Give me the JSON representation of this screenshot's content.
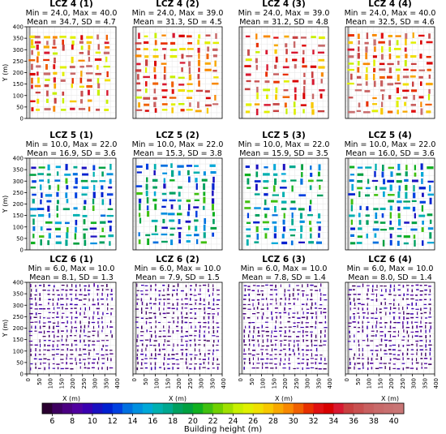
{
  "chart_data": [
    {
      "type": "heatmap",
      "title": "LCZ 4 (1)",
      "stats": [
        "Min = 24.0, Max = 40.0",
        "Mean = 34.7, SD = 4.7"
      ],
      "cols": [
        25,
        50,
        90,
        125,
        165,
        205,
        245,
        280,
        320,
        360
      ],
      "rows": [
        355,
        330,
        310,
        285,
        255,
        225,
        195,
        165,
        140,
        110,
        75,
        40
      ],
      "min": 24,
      "max": 40,
      "mean": 34.7,
      "sd": 4.7,
      "ylabel": "Y (m)",
      "xlabel": ""
    },
    {
      "type": "heatmap",
      "title": "LCZ 4 (2)",
      "stats": [
        "Min = 24.0, Max = 39.0",
        "Mean = 31.3, SD = 4.5"
      ],
      "cols": [
        25,
        60,
        100,
        140,
        180,
        220,
        255,
        295,
        335,
        370
      ],
      "rows": [
        360,
        330,
        300,
        270,
        240,
        210,
        180,
        150,
        120,
        90,
        60,
        35
      ],
      "min": 24,
      "max": 39,
      "mean": 31.3,
      "sd": 4.5,
      "ylabel": "",
      "xlabel": ""
    },
    {
      "type": "heatmap",
      "title": "LCZ 4 (3)",
      "stats": [
        "Min = 24.0, Max = 39.0",
        "Mean = 31.2, SD = 4.8"
      ],
      "cols": [
        40,
        80,
        125,
        165,
        210,
        250,
        290,
        330,
        370
      ],
      "rows": [
        355,
        320,
        290,
        255,
        225,
        190,
        160,
        125,
        95,
        60,
        30
      ],
      "min": 24,
      "max": 39,
      "mean": 31.2,
      "sd": 4.8,
      "ylabel": "",
      "xlabel": ""
    },
    {
      "type": "heatmap",
      "title": "LCZ 4 (4)",
      "stats": [
        "Min = 24.0, Max = 40.0",
        "Mean = 32.5, SD = 4.6"
      ],
      "cols": [
        25,
        60,
        95,
        130,
        165,
        200,
        235,
        270,
        305,
        340,
        375
      ],
      "rows": [
        360,
        330,
        300,
        270,
        240,
        210,
        180,
        150,
        120,
        90,
        60,
        30
      ],
      "min": 24,
      "max": 40,
      "mean": 32.5,
      "sd": 4.6,
      "ylabel": "",
      "xlabel": ""
    },
    {
      "type": "heatmap",
      "title": "LCZ 5 (1)",
      "stats": [
        "Min = 10.0, Max = 22.0",
        "Mean = 16.9, SD = 3.6"
      ],
      "cols": [
        30,
        65,
        100,
        140,
        180,
        220,
        260,
        300,
        340,
        375
      ],
      "rows": [
        360,
        330,
        300,
        270,
        240,
        210,
        180,
        150,
        120,
        90,
        60,
        30
      ],
      "min": 10,
      "max": 22,
      "mean": 16.9,
      "sd": 3.6,
      "ylabel": "Y (m)",
      "xlabel": ""
    },
    {
      "type": "heatmap",
      "title": "LCZ 5 (2)",
      "stats": [
        "Min = 10.0, Max = 22.0",
        "Mean = 15.3, SD = 3.8"
      ],
      "cols": [
        30,
        65,
        100,
        140,
        175,
        210,
        250,
        285,
        320,
        360
      ],
      "rows": [
        365,
        335,
        305,
        275,
        245,
        215,
        185,
        155,
        125,
        95,
        65,
        35
      ],
      "min": 10,
      "max": 22,
      "mean": 15.3,
      "sd": 3.8,
      "ylabel": "",
      "xlabel": ""
    },
    {
      "type": "heatmap",
      "title": "LCZ 5 (3)",
      "stats": [
        "Min = 10.0, Max = 22.0",
        "Mean = 15.9, SD = 3.5"
      ],
      "cols": [
        40,
        80,
        120,
        160,
        200,
        240,
        280,
        320,
        360
      ],
      "rows": [
        360,
        330,
        300,
        270,
        240,
        210,
        180,
        150,
        120,
        90,
        60,
        30
      ],
      "min": 10,
      "max": 22,
      "mean": 15.9,
      "sd": 3.5,
      "ylabel": "",
      "xlabel": ""
    },
    {
      "type": "heatmap",
      "title": "LCZ 5 (4)",
      "stats": [
        "Min = 10.0, Max = 22.0",
        "Mean = 16.0, SD = 3.6"
      ],
      "cols": [
        30,
        65,
        100,
        135,
        170,
        205,
        240,
        275,
        310,
        345,
        380
      ],
      "rows": [
        360,
        330,
        300,
        270,
        240,
        210,
        180,
        150,
        120,
        90,
        60,
        30
      ],
      "min": 10,
      "max": 22,
      "mean": 16.0,
      "sd": 3.6,
      "ylabel": "",
      "xlabel": ""
    },
    {
      "type": "heatmap",
      "title": "LCZ 6 (1)",
      "stats": [
        "Min = 6.0, Max = 10.0",
        "Mean = 8.1, SD = 1.3"
      ],
      "cols": [
        20,
        40,
        60,
        80,
        100,
        120,
        140,
        160,
        180,
        200,
        220,
        240,
        260,
        280,
        300,
        320,
        340,
        360,
        380
      ],
      "rows": [
        385,
        365,
        345,
        325,
        305,
        285,
        265,
        245,
        225,
        205,
        185,
        165,
        145,
        125,
        105,
        85,
        65,
        45,
        25
      ],
      "min": 6,
      "max": 10,
      "mean": 8.1,
      "sd": 1.3,
      "ylabel": "Y (m)",
      "xlabel": "X (m)"
    },
    {
      "type": "heatmap",
      "title": "LCZ 6 (2)",
      "stats": [
        "Min = 6.0, Max = 10.0",
        "Mean = 7.9, SD = 1.5"
      ],
      "cols": [
        20,
        40,
        60,
        80,
        100,
        120,
        140,
        160,
        180,
        200,
        220,
        240,
        260,
        280,
        300,
        320,
        340,
        360,
        380
      ],
      "rows": [
        385,
        365,
        345,
        325,
        305,
        285,
        265,
        245,
        225,
        205,
        185,
        165,
        145,
        125,
        105,
        85,
        65,
        45,
        25
      ],
      "min": 6,
      "max": 10,
      "mean": 7.9,
      "sd": 1.5,
      "ylabel": "",
      "xlabel": "X (m)"
    },
    {
      "type": "heatmap",
      "title": "LCZ 6 (3)",
      "stats": [
        "Min = 6.0, Max = 10.0",
        "Mean = 7.8, SD = 1.4"
      ],
      "cols": [
        25,
        45,
        65,
        85,
        105,
        125,
        145,
        165,
        185,
        205,
        225,
        245,
        265,
        285,
        305,
        325,
        345,
        365,
        385
      ],
      "rows": [
        385,
        365,
        345,
        325,
        305,
        285,
        265,
        245,
        225,
        205,
        185,
        165,
        145,
        125,
        105,
        85,
        65,
        45,
        25
      ],
      "min": 6,
      "max": 10,
      "mean": 7.8,
      "sd": 1.4,
      "ylabel": "",
      "xlabel": "X (m)"
    },
    {
      "type": "heatmap",
      "title": "LCZ 6 (4)",
      "stats": [
        "Min = 6.0, Max = 10.0",
        "Mean = 8.0, SD = 1.4"
      ],
      "cols": [
        20,
        40,
        60,
        80,
        100,
        120,
        140,
        160,
        180,
        200,
        220,
        240,
        260,
        280,
        300,
        320,
        340,
        360,
        380
      ],
      "rows": [
        385,
        365,
        345,
        325,
        305,
        285,
        265,
        245,
        225,
        205,
        185,
        165,
        145,
        125,
        105,
        85,
        65,
        45,
        25
      ],
      "min": 6,
      "max": 10,
      "mean": 8.0,
      "sd": 1.4,
      "ylabel": "",
      "xlabel": "X (m)"
    }
  ],
  "axes": {
    "xlim": [
      0,
      400
    ],
    "ylim": [
      0,
      400
    ],
    "y_ticks": [
      0,
      50,
      100,
      150,
      200,
      250,
      300,
      350,
      400
    ],
    "x_ticks": [
      0,
      50,
      100,
      150,
      200,
      250,
      300,
      350,
      400
    ]
  },
  "colorbar": {
    "label": "Building height (m)",
    "vmin": 5,
    "vmax": 41,
    "ticks": [
      6,
      8,
      10,
      12,
      14,
      16,
      18,
      20,
      22,
      24,
      26,
      28,
      30,
      32,
      34,
      36,
      38,
      40
    ],
    "colors": [
      "#2a0030",
      "#3e0060",
      "#4b0082",
      "#5000a0",
      "#3a00b0",
      "#1a10c0",
      "#0020d0",
      "#0040e0",
      "#0070e0",
      "#0090e0",
      "#00a8d8",
      "#00b0b0",
      "#00a890",
      "#00a060",
      "#00a040",
      "#10b020",
      "#40c010",
      "#70d000",
      "#a0e000",
      "#c8f000",
      "#e0f000",
      "#f0e000",
      "#f8c800",
      "#f8a800",
      "#f88800",
      "#f06000",
      "#e83000",
      "#e01010",
      "#d80000",
      "#d81830",
      "#c84040",
      "#c85050",
      "#c86060",
      "#c86a6a",
      "#c87070",
      "#c87575"
    ]
  }
}
